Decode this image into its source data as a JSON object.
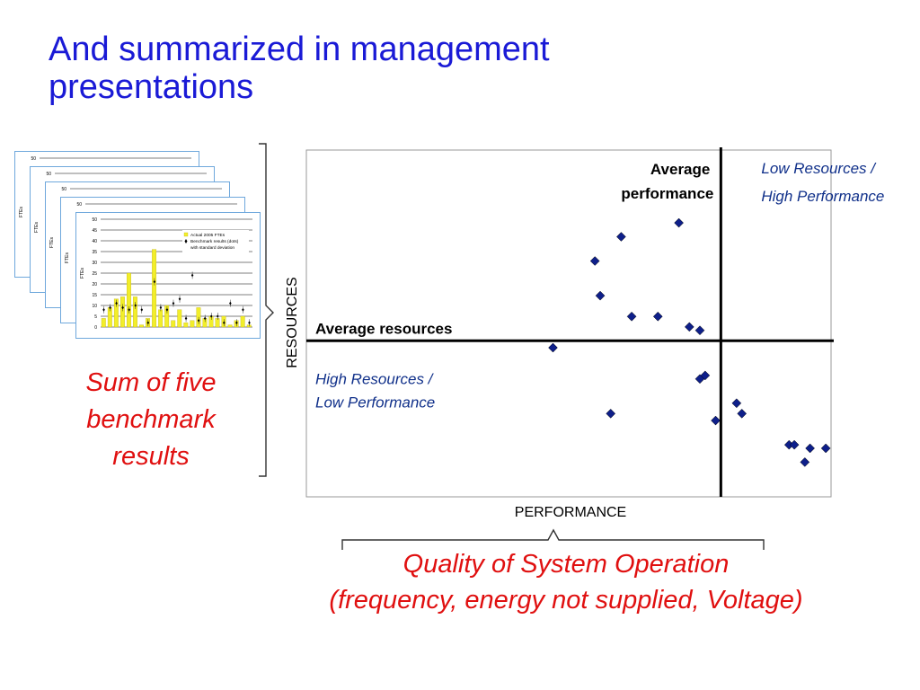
{
  "slide": {
    "title_line1": "And summarized in management",
    "title_line2": "presentations",
    "title_color": "#1a1ad6",
    "accent_color": "#e01010"
  },
  "benchmark_stack": {
    "sheet_count": 5,
    "y_axis_label": "FTEs",
    "y_ticks": [
      "50",
      "45",
      "40",
      "35",
      "30",
      "25",
      "20",
      "15",
      "10",
      "5",
      "0"
    ],
    "legend": [
      "Actual 2005 FTEs",
      "Benchmark results (dots)",
      "with standard deviation"
    ],
    "bar_color": "#f2ee2a",
    "bar_values": [
      4,
      9,
      13,
      14,
      25,
      14,
      1,
      4,
      36,
      8,
      10,
      3,
      8,
      2,
      3,
      9,
      4,
      5,
      4,
      5,
      1,
      3,
      5,
      1
    ],
    "dot_values": [
      8,
      9,
      11,
      9,
      8,
      10,
      8,
      2,
      21,
      9,
      8,
      11,
      13,
      4,
      24,
      3,
      4,
      5,
      5,
      2,
      11,
      2,
      8,
      2
    ]
  },
  "sum_caption": [
    "Sum of five",
    "benchmark",
    "results"
  ],
  "matrix": {
    "y_label": "RESOURCES",
    "x_label": "PERFORMANCE",
    "avg_performance_label": [
      "Average",
      "performance"
    ],
    "avg_resources_label": "Average resources",
    "top_right_label": [
      "Low Resources /",
      "High Performance"
    ],
    "bottom_left_label": [
      "High Resources /",
      "Low Performance"
    ],
    "label_blue": "#10308a",
    "point_color": "#0e1f8a"
  },
  "chart_data": {
    "type": "scatter",
    "title": "",
    "xlabel": "PERFORMANCE",
    "ylabel": "RESOURCES",
    "grid": false,
    "xlim": [
      0,
      100
    ],
    "ylim": [
      0,
      100
    ],
    "average_performance": 79,
    "average_resources": 45,
    "points": [
      {
        "x": 60,
        "y": 75
      },
      {
        "x": 71,
        "y": 79
      },
      {
        "x": 55,
        "y": 68
      },
      {
        "x": 56,
        "y": 58
      },
      {
        "x": 62,
        "y": 52
      },
      {
        "x": 67,
        "y": 52
      },
      {
        "x": 73,
        "y": 49
      },
      {
        "x": 75,
        "y": 48
      },
      {
        "x": 58,
        "y": 24
      },
      {
        "x": 47,
        "y": 43
      },
      {
        "x": 75,
        "y": 34
      },
      {
        "x": 76,
        "y": 35
      },
      {
        "x": 78,
        "y": 22
      },
      {
        "x": 82,
        "y": 27
      },
      {
        "x": 83,
        "y": 24
      },
      {
        "x": 92,
        "y": 15
      },
      {
        "x": 93,
        "y": 15
      },
      {
        "x": 95,
        "y": 10
      },
      {
        "x": 96,
        "y": 14
      },
      {
        "x": 99,
        "y": 14
      }
    ]
  },
  "quality_caption": [
    "Quality of System Operation",
    "(frequency, energy not supplied, Voltage)"
  ]
}
